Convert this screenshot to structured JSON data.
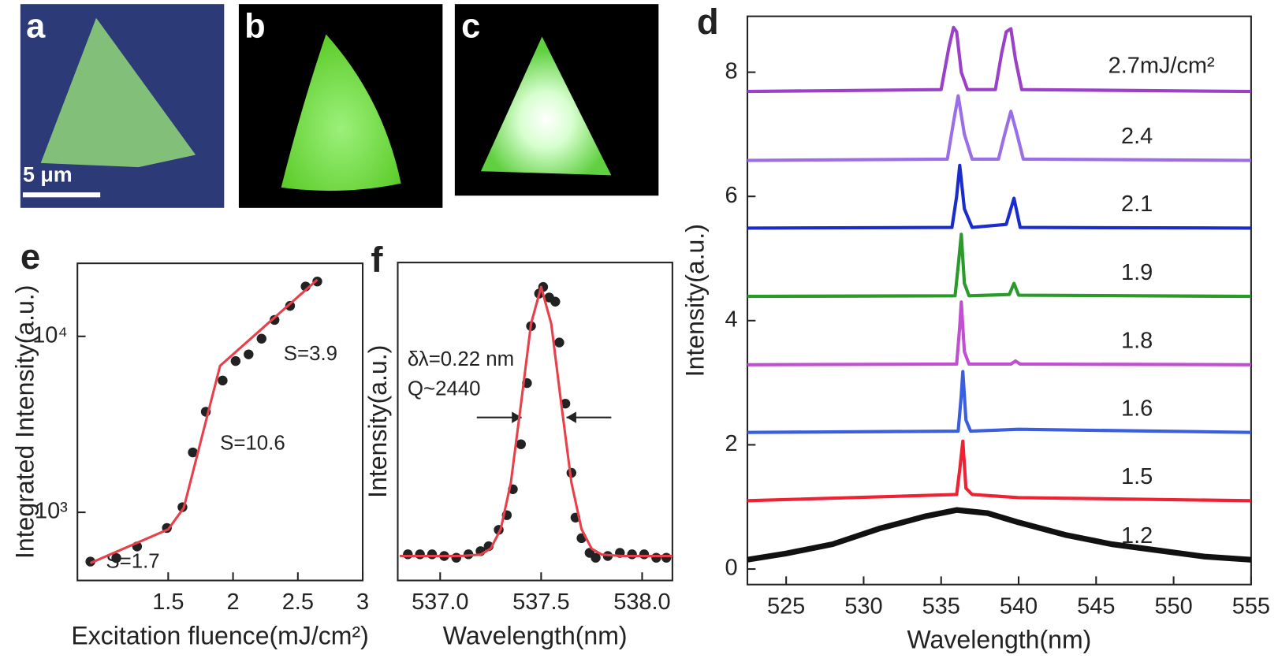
{
  "panels": [
    {
      "label": "a",
      "scale_bar": "5 μm"
    },
    {
      "label": "b"
    },
    {
      "label": "c"
    }
  ],
  "chart_data": [
    {
      "type": "scatter",
      "panel_label": "e",
      "x_label": "Excitation fluence(mJ/cm²)",
      "y_label": "Integrated Intensity(a.u.)",
      "xlim": [
        0.8,
        3.0
      ],
      "xticks": [
        1.5,
        2,
        2.5,
        3
      ],
      "ylim": [
        410,
        26000
      ],
      "log_y": true,
      "yticks": [
        {
          "value": 1000,
          "label": "10³"
        },
        {
          "value": 10000,
          "label": "10⁴"
        }
      ],
      "annotations": [
        "S=1.7",
        "S=10.6",
        "S=3.9"
      ],
      "series": [
        {
          "color": "#222222",
          "marker": "circle",
          "x": [
            0.9,
            1.1,
            1.26,
            1.49,
            1.61,
            1.69,
            1.79,
            1.92,
            2.02,
            2.12,
            2.22,
            2.32,
            2.44,
            2.56,
            2.65
          ],
          "values": [
            525,
            550,
            640,
            815,
            1070,
            2190,
            3730,
            5610,
            7240,
            7900,
            9700,
            12400,
            14900,
            19200,
            20500
          ]
        },
        {
          "color": "#e8404a",
          "line": true,
          "x": [
            0.9,
            1.5,
            1.62,
            1.9,
            2.65
          ],
          "values": [
            515,
            800,
            1060,
            6800,
            21000
          ]
        }
      ]
    },
    {
      "type": "scatter",
      "panel_label": "f",
      "x_label": "Wavelength(nm)",
      "y_label": "Intensity(a.u.)",
      "xlim": [
        536.79,
        538.15
      ],
      "xticks": [
        {
          "value": 537.0,
          "label": "537.0"
        },
        {
          "value": 537.5,
          "label": "537.5"
        },
        {
          "value": 538.0,
          "label": "538.0"
        }
      ],
      "ylim": [
        0,
        1.3
      ],
      "annotations": [
        "δλ=0.22 nm",
        "Q~2440"
      ],
      "series": [
        {
          "color": "#222222",
          "marker": "circle",
          "x": [
            536.84,
            536.9,
            536.96,
            537.02,
            537.08,
            537.14,
            537.2,
            537.24,
            537.29,
            537.33,
            537.36,
            537.4,
            537.43,
            537.45,
            537.49,
            537.51,
            537.54,
            537.57,
            537.59,
            537.62,
            537.65,
            537.67,
            537.7,
            537.74,
            537.77,
            537.83,
            537.89,
            537.95,
            538.01,
            538.07,
            538.12
          ],
          "values": [
            0.107,
            0.107,
            0.107,
            0.1,
            0.093,
            0.107,
            0.12,
            0.14,
            0.207,
            0.267,
            0.373,
            0.557,
            0.807,
            1.04,
            1.173,
            1.2,
            1.157,
            1.14,
            0.973,
            0.723,
            0.44,
            0.257,
            0.173,
            0.113,
            0.093,
            0.1,
            0.113,
            0.107,
            0.107,
            0.093,
            0.093
          ]
        },
        {
          "color": "#e8404a",
          "line": true,
          "x": [
            536.8,
            537.0,
            537.1,
            537.2,
            537.25,
            537.3,
            537.35,
            537.4,
            537.45,
            537.5,
            537.55,
            537.6,
            537.65,
            537.7,
            537.75,
            537.8,
            537.9,
            538.15
          ],
          "values": [
            0.1,
            0.1,
            0.1,
            0.106,
            0.13,
            0.21,
            0.4,
            0.72,
            1.05,
            1.2,
            1.05,
            0.72,
            0.4,
            0.21,
            0.13,
            0.106,
            0.1,
            0.1
          ]
        }
      ]
    },
    {
      "type": "line",
      "panel_label": "d",
      "x_label": "Wavelength(nm)",
      "y_label": "Intensity(a.u.)",
      "xlim": [
        522.5,
        555
      ],
      "xticks": [
        525,
        530,
        535,
        540,
        545,
        550,
        555
      ],
      "ylim": [
        -0.25,
        8.9
      ],
      "yticks": [
        0,
        2,
        4,
        6,
        8
      ],
      "series": [
        {
          "name": "2.7mJ/cm²",
          "color": "#9b40c8",
          "x": [
            522.5,
            535.0,
            535.5,
            535.8,
            536.0,
            536.3,
            536.7,
            538.5,
            538.9,
            539.2,
            539.5,
            539.8,
            540.2,
            555
          ],
          "values": [
            7.69,
            7.72,
            8.4,
            8.72,
            8.65,
            8.0,
            7.72,
            7.72,
            8.3,
            8.65,
            8.7,
            8.2,
            7.72,
            7.69
          ]
        },
        {
          "name": "2.4",
          "color": "#9a6ee6",
          "x": [
            522.5,
            535.4,
            535.8,
            536.1,
            536.5,
            537.0,
            538.7,
            539.1,
            539.5,
            539.9,
            540.3,
            555
          ],
          "values": [
            6.58,
            6.6,
            7.2,
            7.62,
            7.0,
            6.6,
            6.6,
            7.0,
            7.37,
            7.0,
            6.6,
            6.58
          ]
        },
        {
          "name": "2.1",
          "color": "#1a2ccc",
          "x": [
            522.5,
            535.7,
            536.0,
            536.2,
            536.5,
            537.0,
            539.2,
            539.7,
            540.1,
            555
          ],
          "values": [
            5.49,
            5.5,
            6.0,
            6.5,
            5.8,
            5.5,
            5.55,
            5.97,
            5.5,
            5.49
          ]
        },
        {
          "name": "1.9",
          "color": "#2a9a2a",
          "x": [
            522.5,
            535.9,
            536.15,
            536.3,
            536.5,
            536.8,
            539.4,
            539.7,
            540.0,
            555
          ],
          "values": [
            4.39,
            4.4,
            5.0,
            5.39,
            4.6,
            4.4,
            4.42,
            4.6,
            4.41,
            4.39
          ]
        },
        {
          "name": "1.8",
          "color": "#c050d0",
          "x": [
            522.5,
            536.0,
            536.2,
            536.3,
            536.5,
            536.8,
            539.5,
            539.8,
            540.1,
            555
          ],
          "values": [
            3.29,
            3.3,
            3.9,
            4.3,
            3.5,
            3.3,
            3.3,
            3.35,
            3.3,
            3.29
          ]
        },
        {
          "name": "1.6",
          "color": "#3a5ee0",
          "x": [
            522.5,
            536.1,
            536.3,
            536.4,
            536.6,
            536.9,
            540,
            555
          ],
          "values": [
            2.2,
            2.22,
            2.8,
            3.18,
            2.4,
            2.22,
            2.25,
            2.2
          ]
        },
        {
          "name": "1.5",
          "color": "#ee2233",
          "x": [
            522.5,
            536.0,
            536.2,
            536.4,
            536.6,
            537.0,
            540,
            555
          ],
          "values": [
            1.1,
            1.2,
            1.6,
            2.06,
            1.3,
            1.2,
            1.15,
            1.1
          ]
        },
        {
          "name": "1.2",
          "color": "#111111",
          "x": [
            522.5,
            525,
            528,
            531,
            534,
            536,
            538,
            540,
            543,
            546,
            549,
            552,
            555
          ],
          "values": [
            0.15,
            0.25,
            0.4,
            0.65,
            0.85,
            0.95,
            0.9,
            0.75,
            0.55,
            0.4,
            0.3,
            0.2,
            0.15
          ]
        }
      ]
    }
  ]
}
